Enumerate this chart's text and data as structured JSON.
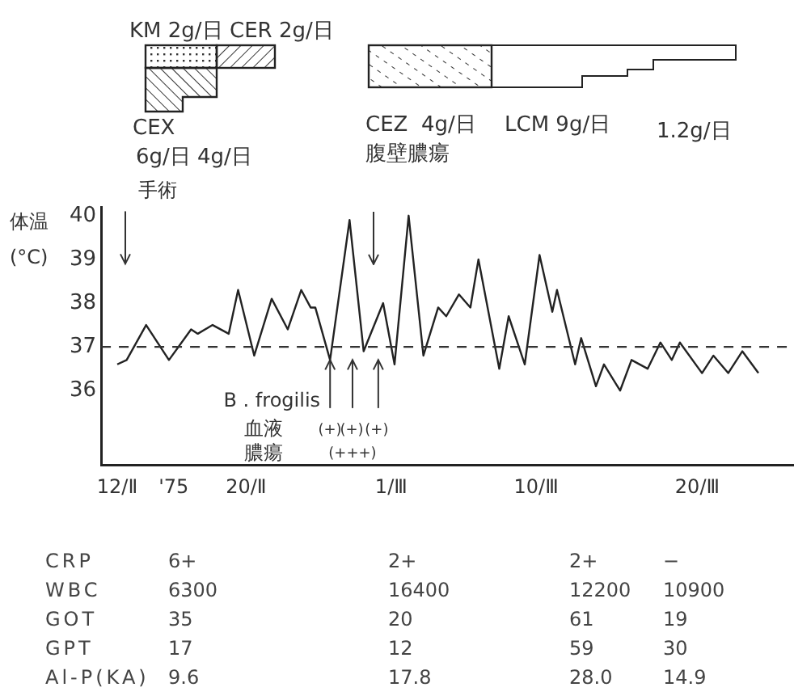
{
  "chart_data": [
    {
      "type": "line",
      "ylabel": "体温 (°C)",
      "x": [
        "1975-02-12T00:00",
        "1975-02-12T14:00",
        "1975-02-13T19:00",
        "1975-02-15T05:00",
        "1975-02-16T14:00",
        "1975-02-17T00:00",
        "1975-02-17T22:00",
        "1975-02-18T22:00",
        "1975-02-19T12:00",
        "1975-02-20T12:00",
        "1975-02-21T14:00",
        "1975-02-22T14:00",
        "1975-02-23T10:00",
        "1975-02-24T00:00",
        "1975-02-24T07:00",
        "1975-02-25T05:00",
        "1975-02-26T10:00",
        "1975-02-27T07:00",
        "1975-02-28T12:00",
        "1975-03-01T05:00",
        "1975-03-02T02:00",
        "1975-03-03T00:00",
        "1975-03-03T22:00",
        "1975-03-04T10:00",
        "1975-03-05T05:00",
        "1975-03-05T22:00",
        "1975-03-06T10:00",
        "1975-03-07T17:00",
        "1975-03-08T07:00",
        "1975-03-09T07:00",
        "1975-03-10T05:00",
        "1975-03-11T00:00",
        "1975-03-11T07:00",
        "1975-03-12T10:00",
        "1975-03-12T19:00",
        "1975-03-13T17:00",
        "1975-03-14T05:00",
        "1975-03-15T05:00",
        "1975-03-15T22:00",
        "1975-03-16T22:00",
        "1975-03-17T17:00",
        "1975-03-18T10:00",
        "1975-03-18T22:00",
        "1975-03-20T07:00",
        "1975-03-21T00:00",
        "1975-03-21T22:00",
        "1975-03-22T19:00",
        "1975-03-23T19:00"
      ],
      "values": [
        36.6,
        36.7,
        37.5,
        36.7,
        37.4,
        37.3,
        37.5,
        37.3,
        38.3,
        36.8,
        38.1,
        37.4,
        38.3,
        37.9,
        37.9,
        36.7,
        39.9,
        36.9,
        38.0,
        36.6,
        40.0,
        36.8,
        37.9,
        37.7,
        38.2,
        37.9,
        39.0,
        36.5,
        37.7,
        36.6,
        39.1,
        37.8,
        38.3,
        36.6,
        37.2,
        36.1,
        36.6,
        36.0,
        36.7,
        36.5,
        37.1,
        36.7,
        37.1,
        36.4,
        36.8,
        36.4,
        36.9,
        36.4
      ],
      "color": "#222222",
      "marker": "none",
      "line_style": "solid",
      "legend": false,
      "grid": false,
      "xlim": [
        "1975-02-11",
        "1975-03-26"
      ],
      "xticks": [
        {
          "value": "1975-02-12",
          "label": "12/Ⅱ"
        },
        {
          "value": "1975-02-15T12:00",
          "label": "'75"
        },
        {
          "value": "1975-02-20",
          "label": "20/Ⅱ"
        },
        {
          "value": "1975-03-01",
          "label": "1/Ⅲ"
        },
        {
          "value": "1975-03-10",
          "label": "10/Ⅲ"
        },
        {
          "value": "1975-03-20",
          "label": "20/Ⅲ"
        }
      ],
      "ylim": [
        34.3,
        40.2
      ],
      "yticks": [
        36,
        37,
        38,
        39,
        40
      ],
      "ref_lines": [
        {
          "axis": "y",
          "value": 37,
          "line_style": "dashed",
          "color": "#333333"
        }
      ],
      "annotations": [
        "KM 2g/日",
        "CER 2g/日",
        "CEX",
        "6g/日 4g/日",
        "CEZ  4g/日",
        "LCM 9g/日",
        "1.2g/日",
        "腹壁膿瘍",
        "手術",
        {
          "text": "B . frogilis",
          "x": "1975-02-25T05:00",
          "y": 36.7
        },
        "血液",
        "膿瘍",
        "(+)",
        "(+)",
        "(+)",
        "(+++)"
      ]
    },
    {
      "type": "other",
      "annotations": [
        "CRP",
        "6+",
        "2+",
        "2+",
        "−",
        "WBC",
        "6300",
        "16400",
        "12200",
        "10900",
        "GOT",
        "35",
        "20",
        "61",
        "19",
        "GPT",
        "17",
        "12",
        "59",
        "30",
        "Al-P(KA)",
        "9.6",
        "17.8",
        "28.0",
        "14.9"
      ]
    }
  ]
}
